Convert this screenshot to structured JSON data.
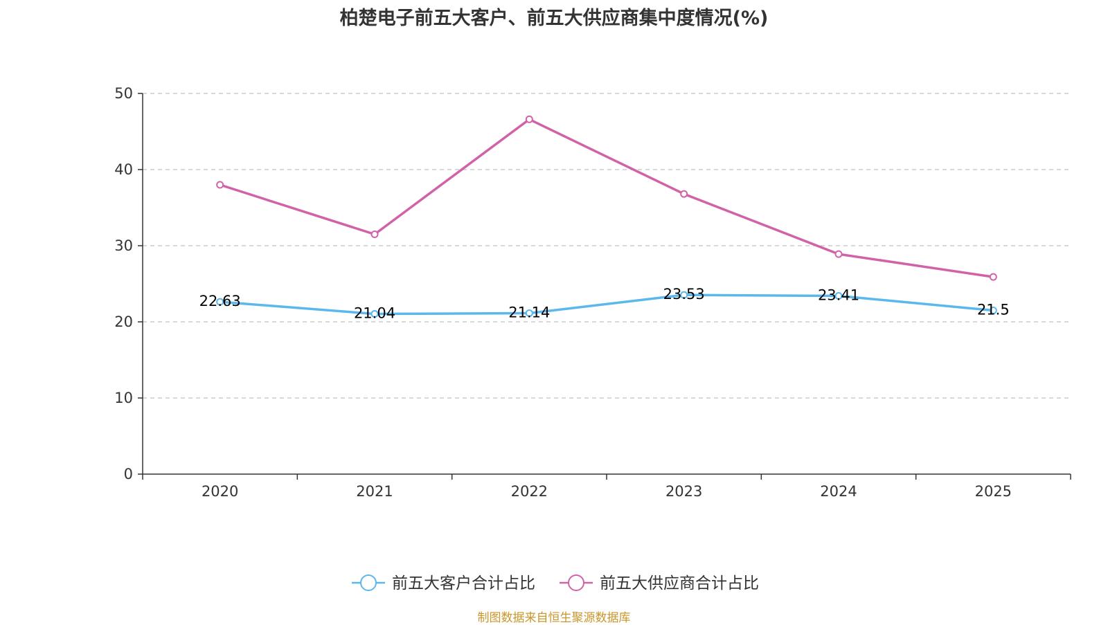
{
  "chart_data": {
    "type": "line",
    "title": "柏楚电子前五大客户、前五大供应商集中度情况(%)",
    "categories": [
      "2020",
      "2021",
      "2022",
      "2023",
      "2024",
      "2025"
    ],
    "ylim": [
      0,
      50
    ],
    "yticks": [
      0,
      10,
      20,
      30,
      40,
      50
    ],
    "grid": true,
    "legend_position": "bottom-center",
    "series": [
      {
        "name": "前五大客户合计占比",
        "color": "#5ab8ee",
        "values": [
          22.63,
          21.04,
          21.14,
          23.53,
          23.41,
          21.5
        ],
        "labels": [
          "22.63",
          "21.04",
          "21.14",
          "23.53",
          "23.41",
          "21.5"
        ],
        "show_labels": true
      },
      {
        "name": "前五大供应商合计占比",
        "color": "#d262a8",
        "values": [
          38.0,
          31.5,
          46.6,
          36.8,
          28.9,
          25.9
        ],
        "show_labels": false
      }
    ],
    "source": "制图数据来自恒生聚源数据库"
  }
}
